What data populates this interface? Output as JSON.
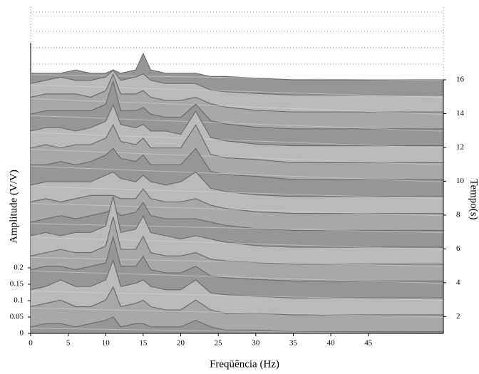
{
  "chart_data": {
    "type": "surface",
    "xlabel": "Freqüência (Hz)",
    "ylabel": "Amplitude (V/V)",
    "y2label": "Tempo(s)",
    "x": [
      0,
      2,
      4,
      6,
      8,
      10,
      11,
      12,
      14,
      15,
      16,
      18,
      20,
      22,
      24,
      26,
      30,
      35,
      55
    ],
    "times": [
      1,
      2,
      3,
      4,
      5,
      6,
      7,
      8,
      9,
      10,
      11,
      12,
      13,
      14,
      15,
      16
    ],
    "values": [
      [
        0.02,
        0.03,
        0.03,
        0.02,
        0.03,
        0.04,
        0.05,
        0.02,
        0.03,
        0.03,
        0.02,
        0.02,
        0.02,
        0.04,
        0.02,
        0.01,
        0.01,
        0.005,
        0.005
      ],
      [
        0.03,
        0.04,
        0.05,
        0.03,
        0.03,
        0.05,
        0.09,
        0.03,
        0.04,
        0.05,
        0.03,
        0.02,
        0.02,
        0.05,
        0.02,
        0.01,
        0.01,
        0.005,
        0.005
      ],
      [
        0.03,
        0.04,
        0.06,
        0.04,
        0.04,
        0.06,
        0.12,
        0.04,
        0.05,
        0.06,
        0.04,
        0.03,
        0.03,
        0.06,
        0.02,
        0.015,
        0.01,
        0.005,
        0.005
      ],
      [
        0.04,
        0.05,
        0.05,
        0.04,
        0.05,
        0.06,
        0.14,
        0.05,
        0.05,
        0.08,
        0.04,
        0.03,
        0.03,
        0.05,
        0.02,
        0.015,
        0.01,
        0.005,
        0.005
      ],
      [
        0.03,
        0.04,
        0.05,
        0.04,
        0.04,
        0.06,
        0.15,
        0.05,
        0.05,
        0.09,
        0.04,
        0.03,
        0.03,
        0.04,
        0.02,
        0.015,
        0.01,
        0.005,
        0.005
      ],
      [
        0.04,
        0.05,
        0.04,
        0.05,
        0.05,
        0.07,
        0.16,
        0.05,
        0.06,
        0.1,
        0.05,
        0.04,
        0.03,
        0.04,
        0.03,
        0.02,
        0.01,
        0.005,
        0.005
      ],
      [
        0.03,
        0.04,
        0.05,
        0.04,
        0.05,
        0.06,
        0.07,
        0.05,
        0.06,
        0.09,
        0.05,
        0.04,
        0.04,
        0.04,
        0.03,
        0.02,
        0.01,
        0.005,
        0.005
      ],
      [
        0.04,
        0.05,
        0.04,
        0.05,
        0.06,
        0.06,
        0.06,
        0.05,
        0.05,
        0.08,
        0.05,
        0.04,
        0.04,
        0.05,
        0.03,
        0.02,
        0.01,
        0.005,
        0.005
      ],
      [
        0.04,
        0.05,
        0.05,
        0.05,
        0.05,
        0.07,
        0.08,
        0.06,
        0.05,
        0.07,
        0.05,
        0.04,
        0.05,
        0.08,
        0.03,
        0.02,
        0.01,
        0.005,
        0.005
      ],
      [
        0.05,
        0.05,
        0.06,
        0.05,
        0.06,
        0.08,
        0.1,
        0.07,
        0.06,
        0.08,
        0.05,
        0.05,
        0.05,
        0.1,
        0.03,
        0.02,
        0.015,
        0.005,
        0.005
      ],
      [
        0.05,
        0.06,
        0.05,
        0.06,
        0.06,
        0.08,
        0.12,
        0.07,
        0.06,
        0.08,
        0.05,
        0.05,
        0.05,
        0.12,
        0.03,
        0.02,
        0.015,
        0.005,
        0.005
      ],
      [
        0.05,
        0.06,
        0.06,
        0.05,
        0.06,
        0.08,
        0.13,
        0.07,
        0.06,
        0.07,
        0.05,
        0.05,
        0.04,
        0.11,
        0.03,
        0.02,
        0.01,
        0.005,
        0.005
      ],
      [
        0.05,
        0.06,
        0.06,
        0.06,
        0.06,
        0.08,
        0.15,
        0.06,
        0.06,
        0.07,
        0.05,
        0.04,
        0.04,
        0.08,
        0.03,
        0.02,
        0.01,
        0.005,
        0.005
      ],
      [
        0.05,
        0.06,
        0.06,
        0.06,
        0.05,
        0.07,
        0.12,
        0.06,
        0.06,
        0.07,
        0.05,
        0.04,
        0.04,
        0.05,
        0.03,
        0.02,
        0.01,
        0.005,
        0.005
      ],
      [
        0.04,
        0.05,
        0.06,
        0.05,
        0.05,
        0.06,
        0.08,
        0.05,
        0.06,
        0.07,
        0.05,
        0.04,
        0.04,
        0.04,
        0.02,
        0.015,
        0.01,
        0.005,
        0.005
      ],
      [
        0.02,
        0.02,
        0.02,
        0.03,
        0.02,
        0.02,
        0.03,
        0.02,
        0.03,
        0.08,
        0.03,
        0.02,
        0.02,
        0.02,
        0.01,
        0.01,
        0.005,
        0,
        0
      ]
    ],
    "color": "#b8b8b8",
    "xlim": [
      0,
      55
    ],
    "xticks": [
      0,
      5,
      10,
      15,
      20,
      25,
      30,
      35,
      40,
      45
    ],
    "ylim": [
      0,
      0.2
    ],
    "yticks": [
      0,
      0.05,
      0.1,
      0.15,
      0.2
    ],
    "y2lim": [
      1,
      16
    ],
    "y2ticks": [
      2,
      4,
      6,
      8,
      10,
      12,
      14,
      16
    ]
  }
}
